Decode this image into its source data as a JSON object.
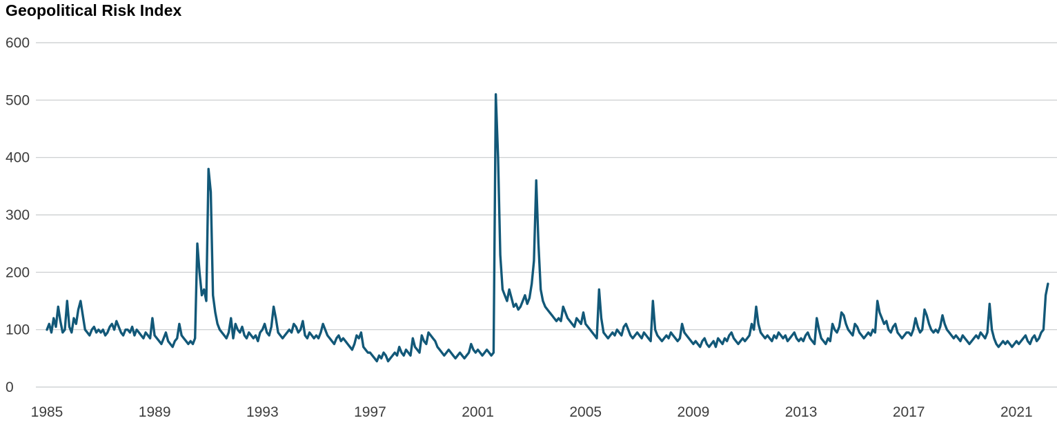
{
  "chart_data": {
    "type": "line",
    "title": "Geopolitical Risk Index",
    "series_name": "Geopolitical Risk Index",
    "xlabel": "",
    "ylabel": "",
    "x_start_year": 1985,
    "x_frequency": "monthly",
    "xlim": [
      1985,
      2022.4
    ],
    "ylim": [
      0,
      600
    ],
    "x_ticks": [
      1985,
      1989,
      1993,
      1997,
      2001,
      2005,
      2009,
      2013,
      2017,
      2021
    ],
    "y_ticks": [
      0,
      100,
      200,
      300,
      400,
      500,
      600
    ],
    "grid": true,
    "legend": "none",
    "line_color": "#125878",
    "grid_color": "#c7cacc",
    "axis_label_color": "#3d3d3d",
    "values": [
      100,
      110,
      95,
      120,
      105,
      140,
      115,
      95,
      100,
      150,
      105,
      95,
      120,
      110,
      135,
      150,
      125,
      100,
      95,
      90,
      100,
      105,
      95,
      100,
      95,
      100,
      90,
      95,
      105,
      110,
      100,
      115,
      105,
      95,
      90,
      100,
      100,
      95,
      105,
      90,
      100,
      95,
      90,
      85,
      95,
      90,
      85,
      120,
      90,
      85,
      80,
      75,
      85,
      95,
      80,
      75,
      70,
      80,
      85,
      110,
      90,
      85,
      80,
      75,
      80,
      75,
      85,
      250,
      200,
      160,
      170,
      150,
      380,
      340,
      160,
      130,
      110,
      100,
      95,
      90,
      85,
      95,
      120,
      85,
      110,
      100,
      95,
      105,
      90,
      85,
      95,
      90,
      85,
      90,
      80,
      95,
      100,
      110,
      95,
      90,
      105,
      140,
      120,
      95,
      90,
      85,
      90,
      95,
      100,
      95,
      110,
      105,
      95,
      100,
      115,
      90,
      85,
      95,
      90,
      85,
      90,
      85,
      95,
      110,
      100,
      90,
      85,
      80,
      75,
      85,
      90,
      80,
      85,
      80,
      75,
      70,
      65,
      75,
      90,
      85,
      95,
      70,
      65,
      60,
      60,
      55,
      50,
      45,
      55,
      50,
      60,
      55,
      45,
      50,
      55,
      60,
      55,
      70,
      60,
      55,
      65,
      60,
      55,
      85,
      70,
      65,
      60,
      90,
      80,
      75,
      95,
      90,
      85,
      80,
      70,
      65,
      60,
      55,
      60,
      65,
      60,
      55,
      50,
      55,
      60,
      55,
      50,
      55,
      60,
      75,
      65,
      60,
      65,
      60,
      55,
      60,
      65,
      60,
      55,
      60,
      510,
      400,
      230,
      170,
      160,
      150,
      170,
      155,
      140,
      145,
      135,
      140,
      150,
      160,
      145,
      155,
      180,
      220,
      360,
      250,
      170,
      150,
      140,
      135,
      130,
      125,
      120,
      115,
      120,
      115,
      140,
      130,
      120,
      115,
      110,
      105,
      120,
      115,
      110,
      130,
      110,
      105,
      100,
      95,
      90,
      85,
      170,
      120,
      95,
      90,
      85,
      90,
      95,
      90,
      100,
      95,
      90,
      105,
      110,
      100,
      90,
      85,
      90,
      95,
      90,
      85,
      95,
      90,
      85,
      80,
      150,
      100,
      90,
      85,
      80,
      85,
      90,
      85,
      95,
      90,
      85,
      80,
      85,
      110,
      95,
      90,
      85,
      80,
      75,
      80,
      75,
      70,
      80,
      85,
      75,
      70,
      75,
      80,
      70,
      85,
      80,
      75,
      85,
      80,
      90,
      95,
      85,
      80,
      75,
      80,
      85,
      80,
      85,
      90,
      110,
      100,
      140,
      110,
      95,
      90,
      85,
      90,
      85,
      80,
      90,
      85,
      95,
      90,
      85,
      90,
      80,
      85,
      90,
      95,
      85,
      80,
      85,
      80,
      90,
      95,
      85,
      80,
      75,
      120,
      100,
      85,
      80,
      75,
      85,
      80,
      110,
      100,
      95,
      105,
      130,
      125,
      110,
      100,
      95,
      90,
      110,
      105,
      95,
      90,
      85,
      90,
      95,
      90,
      100,
      95,
      150,
      130,
      120,
      110,
      115,
      100,
      95,
      105,
      110,
      95,
      90,
      85,
      90,
      95,
      95,
      90,
      100,
      120,
      105,
      95,
      100,
      135,
      125,
      110,
      100,
      95,
      100,
      95,
      105,
      125,
      110,
      100,
      95,
      90,
      85,
      90,
      85,
      80,
      90,
      85,
      80,
      75,
      80,
      85,
      90,
      85,
      95,
      90,
      85,
      95,
      145,
      100,
      85,
      75,
      70,
      75,
      80,
      75,
      80,
      75,
      70,
      75,
      80,
      75,
      80,
      85,
      90,
      80,
      75,
      85,
      90,
      80,
      85,
      95,
      100,
      160,
      180
    ]
  }
}
